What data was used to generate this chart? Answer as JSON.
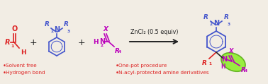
{
  "bg_color": "#f2ede4",
  "red_color": "#dd2222",
  "blue_color": "#4455cc",
  "purple_color": "#bb00bb",
  "green_fill": "#88ee22",
  "green_edge": "#55aa11",
  "black_color": "#222222",
  "bullet_items_left": [
    "Solvent free",
    "Hydrogen bond"
  ],
  "bullet_items_right": [
    "One-pot procedure",
    "N-acyl-protected amine derivatives"
  ],
  "arrow_label": "ZnCl₂ (0.5 equiv)",
  "figsize": [
    3.78,
    1.19
  ],
  "dpi": 100
}
